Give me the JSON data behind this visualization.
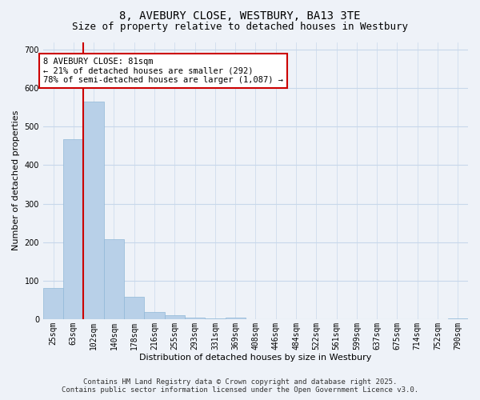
{
  "title_line1": "8, AVEBURY CLOSE, WESTBURY, BA13 3TE",
  "title_line2": "Size of property relative to detached houses in Westbury",
  "xlabel": "Distribution of detached houses by size in Westbury",
  "ylabel": "Number of detached properties",
  "categories": [
    "25sqm",
    "63sqm",
    "102sqm",
    "140sqm",
    "178sqm",
    "216sqm",
    "255sqm",
    "293sqm",
    "331sqm",
    "369sqm",
    "408sqm",
    "446sqm",
    "484sqm",
    "522sqm",
    "561sqm",
    "599sqm",
    "637sqm",
    "675sqm",
    "714sqm",
    "752sqm",
    "790sqm"
  ],
  "values": [
    80,
    467,
    565,
    208,
    57,
    18,
    10,
    5,
    2,
    5,
    0,
    0,
    0,
    0,
    0,
    0,
    0,
    0,
    0,
    0,
    2
  ],
  "bar_color": "#b8d0e8",
  "bar_edge_color": "#90b8d8",
  "grid_color": "#c8d8ea",
  "bg_color": "#eef2f8",
  "annotation_box_text": "8 AVEBURY CLOSE: 81sqm\n← 21% of detached houses are smaller (292)\n78% of semi-detached houses are larger (1,087) →",
  "annotation_box_color": "#ffffff",
  "annotation_box_edge_color": "#cc0000",
  "vline_color": "#cc0000",
  "ylim": [
    0,
    720
  ],
  "yticks": [
    0,
    100,
    200,
    300,
    400,
    500,
    600,
    700
  ],
  "footer_line1": "Contains HM Land Registry data © Crown copyright and database right 2025.",
  "footer_line2": "Contains public sector information licensed under the Open Government Licence v3.0.",
  "title_fontsize": 10,
  "subtitle_fontsize": 9,
  "axis_label_fontsize": 8,
  "tick_fontsize": 7,
  "annotation_fontsize": 7.5,
  "footer_fontsize": 6.5
}
